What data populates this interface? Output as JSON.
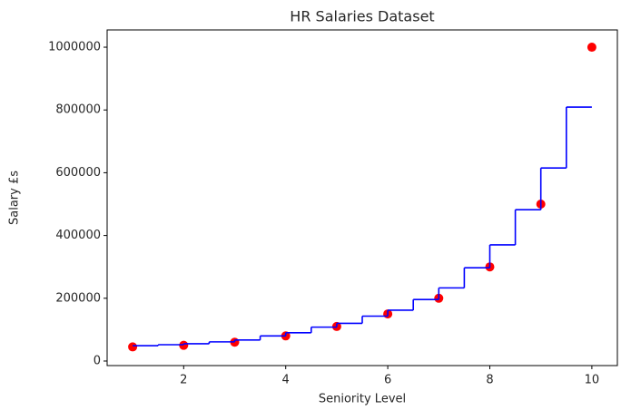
{
  "chart_data": {
    "type": "scatter",
    "title": "HR Salaries Dataset",
    "x_label": "Seniority Level",
    "y_label": "Salary £s",
    "xlim": [
      0.5,
      10.5
    ],
    "xticks": [
      2,
      4,
      6,
      8,
      10
    ],
    "ylim": [
      -14500,
      1055000
    ],
    "yticks": [
      0,
      200000,
      400000,
      600000,
      800000,
      1000000
    ],
    "series": [
      {
        "type": "scatter",
        "color": "red",
        "x": [
          1,
          2,
          3,
          4,
          5,
          6,
          7,
          8,
          9,
          10
        ],
        "values": [
          45000,
          50000,
          60000,
          80000,
          110000,
          150000,
          200000,
          300000,
          500000,
          1000000
        ]
      },
      {
        "type": "line",
        "drawstyle": "steps-post",
        "color": "blue",
        "x": [
          1,
          1.5,
          2,
          2.5,
          3,
          3.5,
          4,
          4.5,
          5,
          5.5,
          6,
          6.5,
          7,
          7.5,
          8,
          8.5,
          9,
          9.5,
          10
        ],
        "values": [
          49000,
          52000,
          55000,
          61000,
          67000,
          80000,
          90000,
          108000,
          120000,
          143000,
          162000,
          196000,
          233000,
          297000,
          370000,
          482000,
          615000,
          809000,
          809000
        ]
      }
    ]
  }
}
